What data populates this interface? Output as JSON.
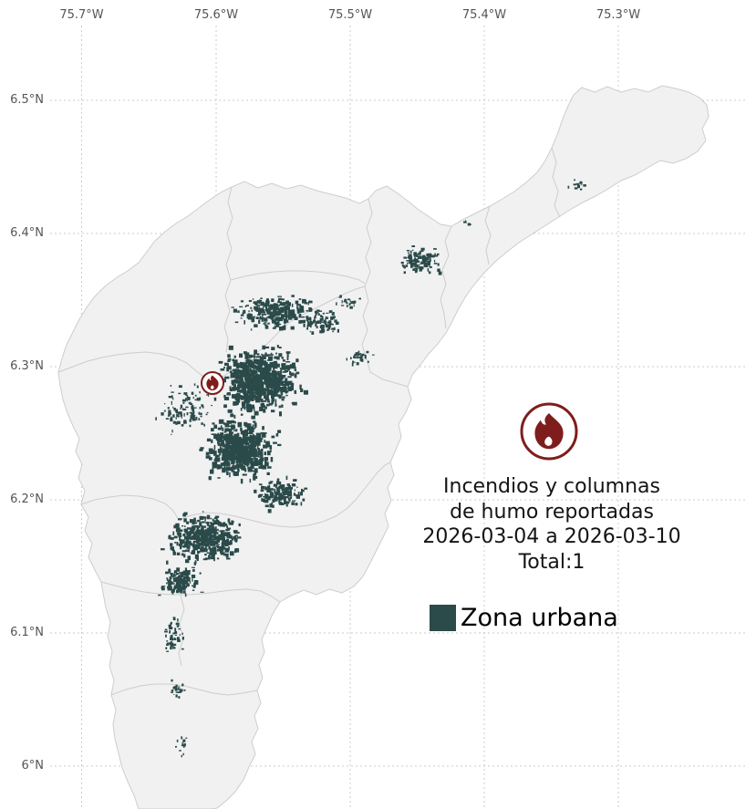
{
  "axes": {
    "x_ticks": [
      "75.7°W",
      "75.6°W",
      "75.5°W",
      "75.4°W",
      "75.3°W"
    ],
    "y_ticks": [
      "6.5°N",
      "6.4°N",
      "6.3°N",
      "6.2°N",
      "6.1°N",
      "6°N"
    ]
  },
  "annotation": {
    "lines": [
      "Incendios y columnas",
      "de humo reportadas",
      "2026-03-04 a 2026-03-10",
      "Total:1"
    ],
    "total": 1
  },
  "legend": {
    "urban_label": "Zona urbana"
  },
  "icons": {
    "fire": "fire-icon"
  },
  "colors": {
    "urban": "#2b4a4a",
    "fire": "#7f1d1d",
    "map_fill": "#f1f1f1",
    "map_border": "#cdcdcd",
    "grid": "#cbcbcb",
    "tick_text": "#555555",
    "annotation_text": "#141414"
  }
}
